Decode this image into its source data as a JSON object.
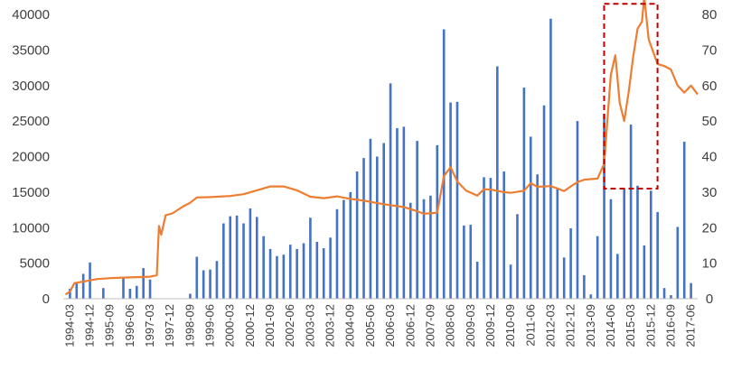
{
  "chart_data": {
    "type": "bar+line",
    "title": "",
    "x_tick_labels": [
      "1994-03",
      "1994-12",
      "1995-09",
      "1996-06",
      "1997-03",
      "1997-12",
      "1998-09",
      "1999-06",
      "2000-03",
      "2000-12",
      "2001-09",
      "2002-06",
      "2003-03",
      "2003-12",
      "2004-09",
      "2005-06",
      "2006-03",
      "2006-12",
      "2007-09",
      "2008-06",
      "2009-03",
      "2009-12",
      "2010-09",
      "2011-06",
      "2012-03",
      "2012-12",
      "2013-09",
      "2014-06",
      "2015-03",
      "2015-12",
      "2016-09",
      "2017-06"
    ],
    "y_left": {
      "ticks": [
        0,
        5000,
        10000,
        15000,
        20000,
        25000,
        30000,
        35000,
        40000
      ],
      "min": 0,
      "max": 40000
    },
    "y_right": {
      "ticks": [
        0,
        10,
        20,
        30,
        40,
        50,
        60,
        70,
        80
      ],
      "min": 0,
      "max": 80
    },
    "series": [
      {
        "type": "bar",
        "axis": "left",
        "color": "#4472C4",
        "points": [
          [
            "1994-03",
            1400
          ],
          [
            "1994-06",
            2200
          ],
          [
            "1994-09",
            3500
          ],
          [
            "1994-12",
            5100
          ],
          [
            "1995-06",
            1500
          ],
          [
            "1996-03",
            3000
          ],
          [
            "1996-06",
            1400
          ],
          [
            "1996-09",
            1800
          ],
          [
            "1996-12",
            4300
          ],
          [
            "1997-03",
            2700
          ],
          [
            "1998-09",
            700
          ],
          [
            "1998-12",
            5900
          ],
          [
            "1999-03",
            4000
          ],
          [
            "1999-06",
            4100
          ],
          [
            "1999-09",
            5300
          ],
          [
            "1999-12",
            10600
          ],
          [
            "2000-03",
            11600
          ],
          [
            "2000-06",
            11700
          ],
          [
            "2000-09",
            10600
          ],
          [
            "2000-12",
            12700
          ],
          [
            "2001-03",
            11500
          ],
          [
            "2001-06",
            8800
          ],
          [
            "2001-09",
            7000
          ],
          [
            "2001-12",
            6000
          ],
          [
            "2002-03",
            6200
          ],
          [
            "2002-06",
            7600
          ],
          [
            "2002-09",
            7000
          ],
          [
            "2002-12",
            7800
          ],
          [
            "2003-03",
            11400
          ],
          [
            "2003-06",
            8000
          ],
          [
            "2003-09",
            7100
          ],
          [
            "2003-12",
            8600
          ],
          [
            "2004-03",
            12600
          ],
          [
            "2004-06",
            13900
          ],
          [
            "2004-09",
            15000
          ],
          [
            "2004-12",
            17900
          ],
          [
            "2005-03",
            19800
          ],
          [
            "2005-06",
            22500
          ],
          [
            "2005-09",
            20000
          ],
          [
            "2005-12",
            21900
          ],
          [
            "2006-03",
            30300
          ],
          [
            "2006-06",
            24000
          ],
          [
            "2006-09",
            24200
          ],
          [
            "2006-12",
            13500
          ],
          [
            "2007-03",
            22200
          ],
          [
            "2007-06",
            14000
          ],
          [
            "2007-09",
            14500
          ],
          [
            "2007-12",
            21600
          ],
          [
            "2008-03",
            37900
          ],
          [
            "2008-06",
            27600
          ],
          [
            "2008-09",
            27700
          ],
          [
            "2008-12",
            10300
          ],
          [
            "2009-03",
            10400
          ],
          [
            "2009-06",
            5200
          ],
          [
            "2009-09",
            17100
          ],
          [
            "2009-12",
            17000
          ],
          [
            "2010-03",
            32700
          ],
          [
            "2010-06",
            17900
          ],
          [
            "2010-09",
            4800
          ],
          [
            "2010-12",
            11900
          ],
          [
            "2011-03",
            29700
          ],
          [
            "2011-06",
            22800
          ],
          [
            "2011-09",
            17500
          ],
          [
            "2011-12",
            27200
          ],
          [
            "2012-03",
            39400
          ],
          [
            "2012-06",
            15600
          ],
          [
            "2012-09",
            5800
          ],
          [
            "2012-12",
            9900
          ],
          [
            "2013-03",
            25000
          ],
          [
            "2013-06",
            3300
          ],
          [
            "2013-09",
            600
          ],
          [
            "2013-12",
            8800
          ],
          [
            "2014-03",
            26000
          ],
          [
            "2014-06",
            14000
          ],
          [
            "2014-09",
            6300
          ],
          [
            "2014-12",
            15500
          ],
          [
            "2015-03",
            24500
          ],
          [
            "2015-06",
            15900
          ],
          [
            "2015-09",
            7500
          ],
          [
            "2015-12",
            15200
          ],
          [
            "2016-03",
            12200
          ],
          [
            "2016-06",
            1500
          ],
          [
            "2016-09",
            500
          ],
          [
            "2016-12",
            10100
          ],
          [
            "2017-03",
            22100
          ],
          [
            "2017-06",
            2200
          ]
        ]
      },
      {
        "type": "line",
        "axis": "right",
        "color": "#ED7D31",
        "points": [
          [
            "1994-01",
            1.2
          ],
          [
            "1994-03",
            2.0
          ],
          [
            "1994-05",
            4.4
          ],
          [
            "1994-09",
            4.8
          ],
          [
            "1995-03",
            5.5
          ],
          [
            "1995-09",
            5.8
          ],
          [
            "1996-06",
            6.0
          ],
          [
            "1997-03",
            6.2
          ],
          [
            "1997-06",
            6.6
          ],
          [
            "1997-07",
            20.5
          ],
          [
            "1997-08",
            18.0
          ],
          [
            "1997-10",
            23.5
          ],
          [
            "1998-01",
            24.0
          ],
          [
            "1998-06",
            26.0
          ],
          [
            "1998-09",
            27.0
          ],
          [
            "1998-12",
            28.5
          ],
          [
            "1999-06",
            28.6
          ],
          [
            "2000-03",
            28.9
          ],
          [
            "2000-09",
            29.4
          ],
          [
            "2001-03",
            30.5
          ],
          [
            "2001-09",
            31.6
          ],
          [
            "2002-03",
            31.6
          ],
          [
            "2002-09",
            30.5
          ],
          [
            "2003-03",
            28.7
          ],
          [
            "2003-09",
            28.3
          ],
          [
            "2004-03",
            28.8
          ],
          [
            "2004-09",
            28.1
          ],
          [
            "2005-03",
            27.6
          ],
          [
            "2005-09",
            26.9
          ],
          [
            "2006-03",
            26.3
          ],
          [
            "2006-09",
            25.8
          ],
          [
            "2007-03",
            24.6
          ],
          [
            "2007-06",
            23.9
          ],
          [
            "2007-12",
            24.2
          ],
          [
            "2008-03",
            34.5
          ],
          [
            "2008-06",
            37.0
          ],
          [
            "2008-09",
            33.0
          ],
          [
            "2009-01",
            30.4
          ],
          [
            "2009-06",
            29.0
          ],
          [
            "2009-09",
            30.8
          ],
          [
            "2009-12",
            30.7
          ],
          [
            "2010-06",
            30.0
          ],
          [
            "2010-09",
            29.8
          ],
          [
            "2011-03",
            30.4
          ],
          [
            "2011-06",
            32.5
          ],
          [
            "2011-09",
            31.5
          ],
          [
            "2012-03",
            31.7
          ],
          [
            "2012-06",
            31.0
          ],
          [
            "2012-09",
            30.3
          ],
          [
            "2012-12",
            31.6
          ],
          [
            "2013-03",
            32.8
          ],
          [
            "2013-06",
            33.5
          ],
          [
            "2013-12",
            33.8
          ],
          [
            "2014-03",
            38.0
          ],
          [
            "2014-06",
            63.0
          ],
          [
            "2014-08",
            68.5
          ],
          [
            "2014-10",
            55.0
          ],
          [
            "2014-12",
            50.0
          ],
          [
            "2015-02",
            58.0
          ],
          [
            "2015-04",
            68.0
          ],
          [
            "2015-06",
            76.0
          ],
          [
            "2015-08",
            78.0
          ],
          [
            "2015-09",
            85.0
          ],
          [
            "2015-11",
            73.0
          ],
          [
            "2016-03",
            66.0
          ],
          [
            "2016-06",
            65.5
          ],
          [
            "2016-09",
            64.5
          ],
          [
            "2016-12",
            60.0
          ],
          [
            "2017-03",
            58.0
          ],
          [
            "2017-06",
            60.0
          ],
          [
            "2017-09",
            57.5
          ]
        ]
      }
    ],
    "highlight_box": {
      "style": "dashed",
      "color": "#C00000",
      "x_from": "2014-03",
      "x_to": "2016-03",
      "y_right_from": 31,
      "y_right_to": 83
    },
    "grid": false,
    "legend": "none"
  }
}
